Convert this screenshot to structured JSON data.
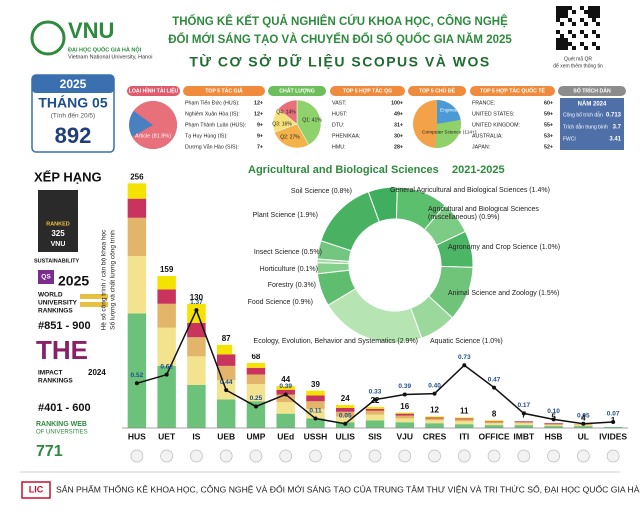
{
  "header": {
    "logo": "VNU",
    "logo_sub": "ĐẠI HỌC QUỐC GIA HÀ NỘI",
    "logo_en": "Vietnam National University, Hanoi",
    "title_lines": [
      "THỐNG KÊ KẾT QUẢ NGHIÊN CỨU KHOA HỌC, CÔNG NGHỆ",
      "ĐỔI MỚI SÁNG TẠO VÀ CHUYỂN ĐỔI SỐ QUỐC GIA NĂM 2025"
    ],
    "subtitle": "TỪ CƠ SỞ DỮ LIỆU SCOPUS VÀ WOS",
    "qr_note": [
      "Quét mã QR",
      "để xem thêm thông tin"
    ]
  },
  "summary": {
    "year": "2025",
    "month": "THÁNG 05",
    "note": "(Tính đến 20/5)",
    "total": 892
  },
  "rankings": {
    "title": "XẾP HẠNG",
    "qs_sust": {
      "badge": [
        "RANKED",
        "325",
        "VNU"
      ],
      "label": "SUSTAINABILITY"
    },
    "qs_world": {
      "brand": "QS",
      "year": "2025",
      "lines": [
        "WORLD",
        "UNIVERSITY",
        "RANKINGS"
      ],
      "rank": "#851 - 900"
    },
    "the": {
      "brand": "THE",
      "lines": [
        "IMPACT",
        "RANKINGS"
      ],
      "year": "2024",
      "rank": "#401 - 600"
    },
    "webometrics": {
      "lines": [
        "RANKING WEB",
        "OF UNIVERSITIES"
      ],
      "rank": "771"
    }
  },
  "cards": {
    "doc_type": {
      "title": "LOẠI HÌNH TÀI LIỆU",
      "label": "Article (81.9%)",
      "value": 81.9,
      "color": "#e8707a"
    },
    "authors": {
      "title": "TOP 5 TÁC GIẢ",
      "rows": [
        [
          "Phạm Tiến Đức (HUS):",
          "12+"
        ],
        [
          "Nghiêm Xuân Hòa (IS):",
          "12+"
        ],
        [
          "Phạm Thành Luân (HUS):",
          "9+"
        ],
        [
          "Tạ Huy Hùng (IS):",
          "9+"
        ],
        [
          "Dương Văn Hào (SIS):",
          "7+"
        ]
      ]
    },
    "quality": {
      "title": "CHẤT LƯỢNG",
      "labels": [
        "Q1: 41%",
        "Q2: 27%",
        "Q3: 16%",
        "Q4: 14%"
      ],
      "values": [
        41,
        27,
        16,
        14
      ],
      "colors": [
        "#8fd16a",
        "#f3b24a",
        "#f6e27a",
        "#e8707a"
      ]
    },
    "national": {
      "title": "TOP 5 HỢP TÁC QG",
      "rows": [
        [
          "VAST:",
          "100+"
        ],
        [
          "HUST:",
          "49+"
        ],
        [
          "DTU:",
          "31+"
        ],
        [
          "PHENIKAA:",
          "30+"
        ],
        [
          "HMU:",
          "28+"
        ]
      ]
    },
    "topics": {
      "title": "TOP 5 CHỦ ĐỀ",
      "labels": [
        "Engineering (18+)",
        "Computer Science (114+)"
      ]
    },
    "international": {
      "title": "TOP 5 HỢP TÁC QUỐC TẾ",
      "rows": [
        [
          "FRANCE:",
          "60+"
        ],
        [
          "UNITED STATES:",
          "59+"
        ],
        [
          "UNITED KINGDOM:",
          "55+"
        ],
        [
          "AUSTRALIA:",
          "53+"
        ],
        [
          "JAPAN:",
          "52+"
        ]
      ]
    },
    "citations": {
      "title": "SỐ TRÍCH DẪN",
      "year": "NĂM 2024",
      "rows": [
        [
          "Công bố trích dẫn",
          "0.713"
        ],
        [
          "Trích dẫn trung bình",
          "3.7"
        ],
        [
          "FWCI",
          "3.41"
        ]
      ]
    }
  },
  "chart_data": [
    {
      "type": "bar",
      "stacked": true,
      "y_labels": [
        "Hệ số công trình / cán bộ khoa học",
        "Số lượng và chất lượng công trình"
      ],
      "categories": [
        "HUS",
        "UET",
        "IS",
        "UEB",
        "UMP",
        "UEd",
        "USSH",
        "ULIS",
        "SIS",
        "VJU",
        "CRES",
        "ITI",
        "OFFICE",
        "IMBT",
        "HSB",
        "UL",
        "IVIDES"
      ],
      "ylim": [
        0,
        270
      ],
      "y2lim": [
        0,
        3
      ],
      "totals": [
        256,
        159,
        130,
        87,
        68,
        44,
        39,
        24,
        22,
        16,
        12,
        11,
        8,
        7,
        5,
        4,
        1
      ],
      "series": [
        {
          "color": "#6cc27a",
          "values": [
            120,
            65,
            45,
            30,
            28,
            15,
            10,
            6,
            8,
            6,
            5,
            4,
            3,
            3,
            2,
            2,
            1
          ]
        },
        {
          "color": "#f3e38f",
          "values": [
            60,
            40,
            30,
            20,
            18,
            12,
            10,
            6,
            6,
            4,
            3,
            3,
            2,
            2,
            1,
            1,
            0
          ]
        },
        {
          "color": "#e2b56a",
          "values": [
            40,
            25,
            20,
            15,
            10,
            8,
            8,
            5,
            4,
            3,
            2,
            2,
            1,
            1,
            1,
            1,
            0
          ]
        },
        {
          "color": "#c8345e",
          "values": [
            20,
            15,
            15,
            12,
            7,
            5,
            6,
            4,
            2,
            2,
            1,
            1,
            1,
            1,
            1,
            0,
            0
          ]
        },
        {
          "color": "#f4e200",
          "values": [
            16,
            14,
            20,
            10,
            5,
            4,
            5,
            3,
            2,
            1,
            1,
            1,
            1,
            0,
            0,
            0,
            0
          ]
        },
        {
          "type": "line",
          "axis": "y2",
          "color": "#111111",
          "values": [
            0.52,
            0.62,
            1.37,
            0.44,
            0.25,
            0.39,
            0.11,
            0.05,
            0.33,
            0.39,
            0.4,
            0.73,
            0.47,
            0.17,
            0.1,
            0.05,
            0.07
          ],
          "value_labels": [
            "0.52",
            "0.62",
            "1.37",
            "0.44",
            "0.25",
            "0.39",
            "0.11",
            "0.05",
            "0.33",
            "0.39",
            "0.40",
            "0.73",
            "0.47",
            "0.17",
            "0.10",
            "0.05",
            "0.07"
          ]
        }
      ]
    },
    {
      "type": "pie",
      "title": "Agricultural and Biological Sciences",
      "period": "2021-2025",
      "labels": [
        "Soil Science (0.8%)",
        "General Agricultural and Biological Sciences (1.4%)",
        "Agricultural and Biological Sciences (miscellaneous) (0.9%)",
        "Agronomy and Crop Science (1.0%)",
        "Animal Science and Zoology (1.5%)",
        "Aquatic Science (1.0%)",
        "Ecology, Evolution, Behavior and Systematics (2.9%)",
        "Food Science (0.9%)",
        "Forestry (0.3%)",
        "Horticulture (0.1%)",
        "Insect Science (0.5%)",
        "Plant Science (1.9%)"
      ],
      "values": [
        0.8,
        1.4,
        0.9,
        1.0,
        1.5,
        1.0,
        2.9,
        0.9,
        0.3,
        0.1,
        0.5,
        1.9
      ],
      "colors": [
        "#3fae5e",
        "#5cbf6e",
        "#7dcc85",
        "#4db566",
        "#6fc47a",
        "#9ad89c",
        "#b6e4b2",
        "#5fbd70",
        "#86d08e",
        "#a5dca5",
        "#72c67f",
        "#49b262"
      ]
    }
  ],
  "footer": {
    "logo": "LIC",
    "text": "SẢN PHẨM  THỐNG KÊ KHOA HỌC, CÔNG NGHỆ VÀ ĐỔI MỚI SÁNG TẠO CỦA TRUNG TÂM THƯ VIỆN VÀ TRI THỨC SỐ, ĐẠI HỌC QUỐC GIA HÀ NỘI"
  }
}
